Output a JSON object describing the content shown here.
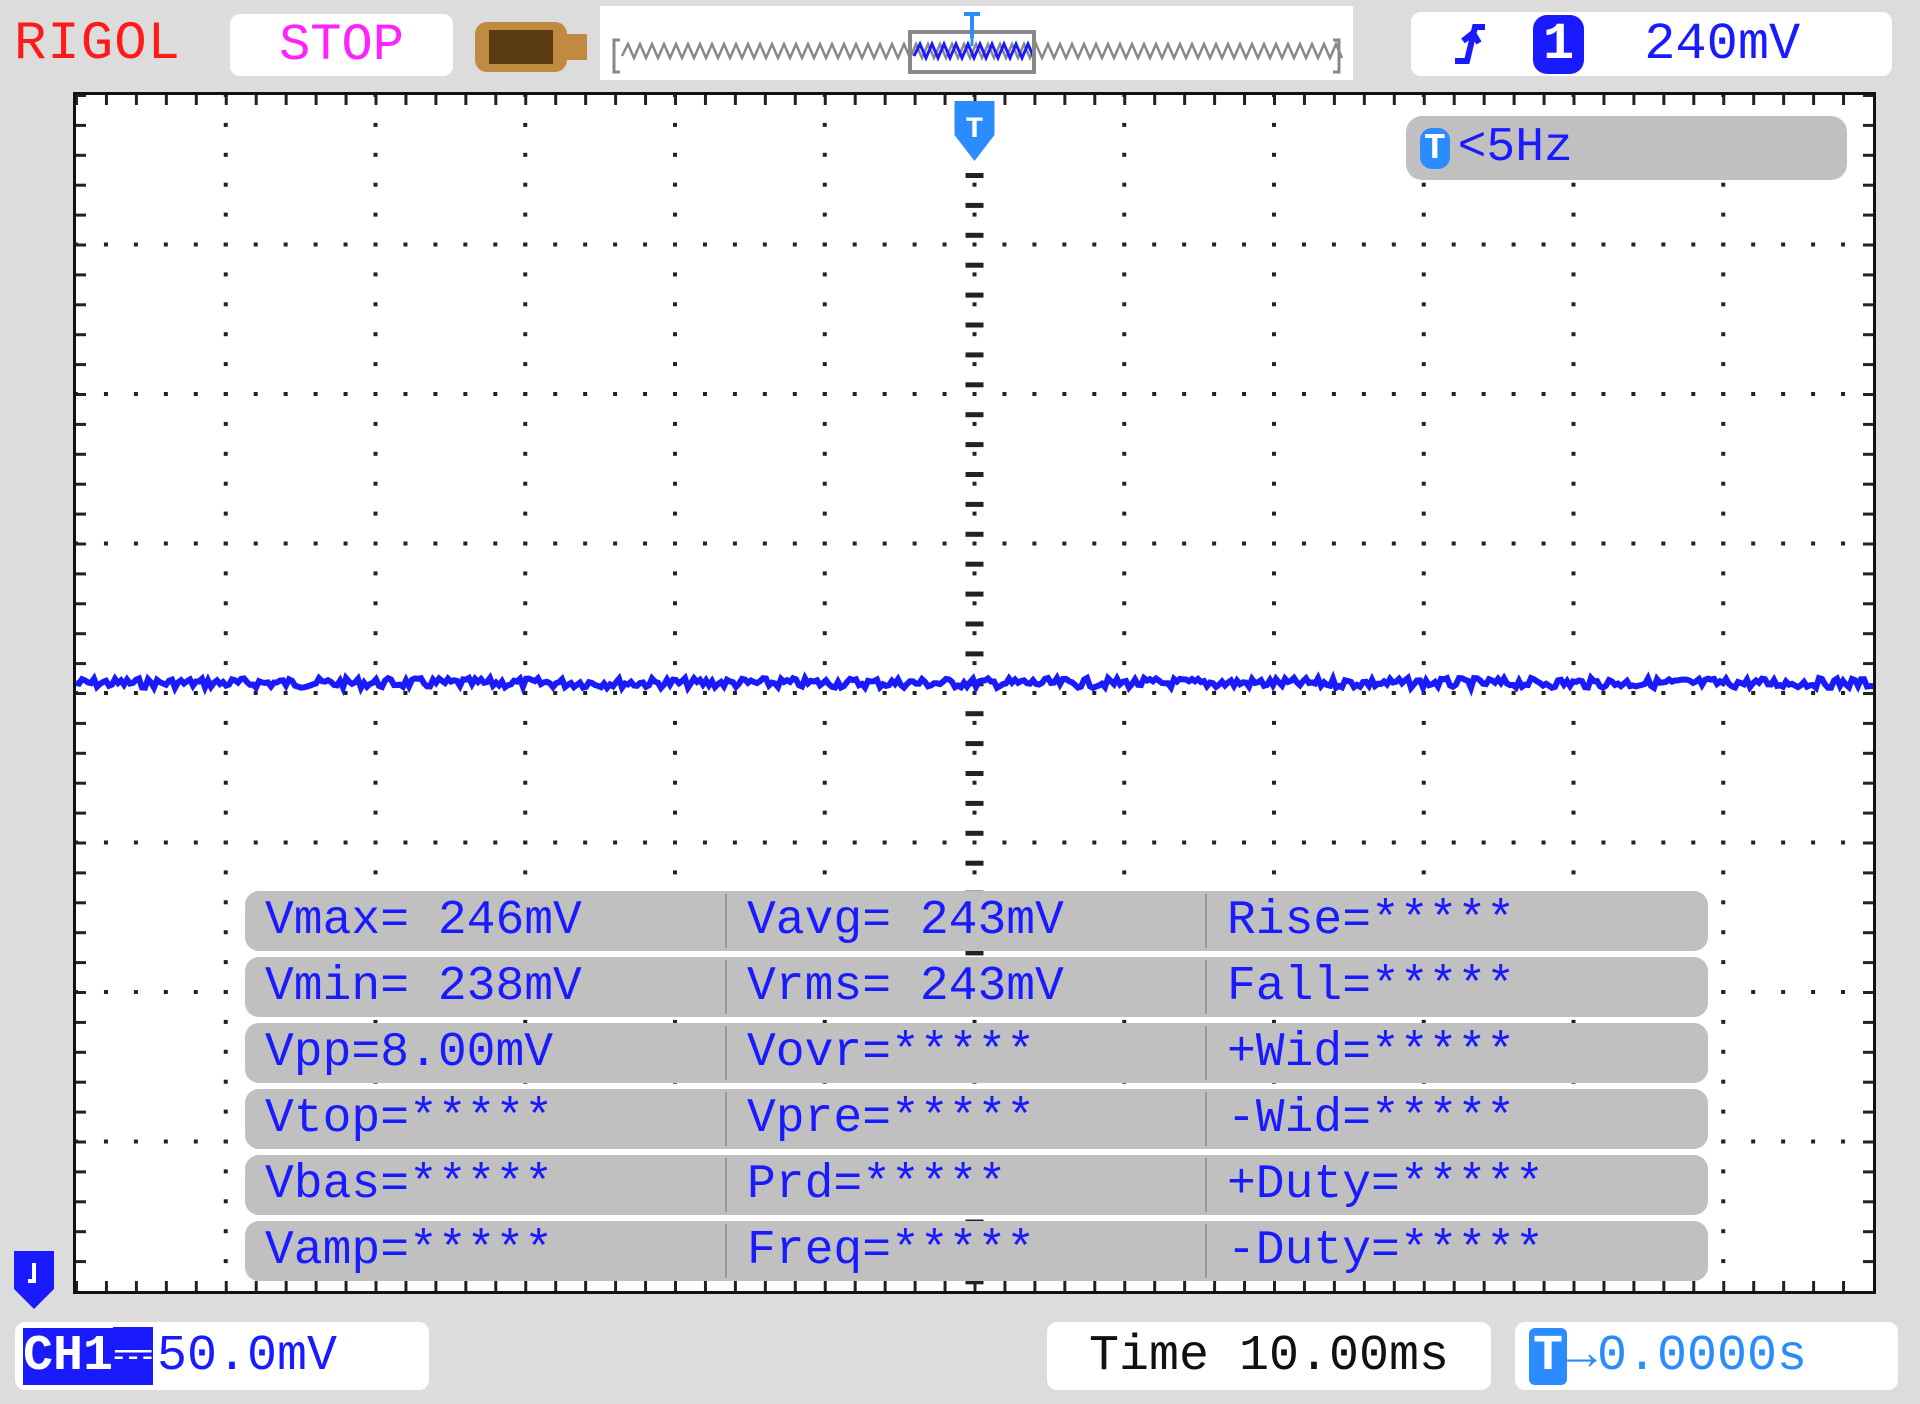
{
  "header": {
    "brand": "RIGOL",
    "run_state": "STOP",
    "trigger": {
      "edge_icon": "rising-edge-icon",
      "source": "1",
      "level": "240mV"
    }
  },
  "screen": {
    "trigger_marker": "T",
    "trigger_freq": {
      "badge": "T",
      "text": "<5Hz"
    },
    "channel_marker": "1"
  },
  "measurements": [
    [
      "Vmax= 246mV",
      "Vavg= 243mV",
      "Rise=*****"
    ],
    [
      "Vmin= 238mV",
      "Vrms= 243mV",
      "Fall=*****"
    ],
    [
      "Vpp=8.00mV",
      "Vovr=*****",
      "+Wid=*****"
    ],
    [
      "Vtop=*****",
      "Vpre=*****",
      "-Wid=*****"
    ],
    [
      "Vbas=*****",
      "Prd=*****",
      "+Duty=*****"
    ],
    [
      "Vamp=*****",
      "Freq=*****",
      "-Duty=*****"
    ]
  ],
  "footer": {
    "channel": "CH1",
    "coupling_icon": "dc-coupling-icon",
    "volts_div": "50.0mV",
    "time_label": "Time",
    "time_div": "10.00ms",
    "trigger_offset_badge": "T",
    "trigger_offset": "→0.0000s"
  },
  "colors": {
    "trace": "#1a1aff",
    "brand": "#ff1a1a",
    "stop": "#ff22ff",
    "trigger": "#2b8cff"
  }
}
